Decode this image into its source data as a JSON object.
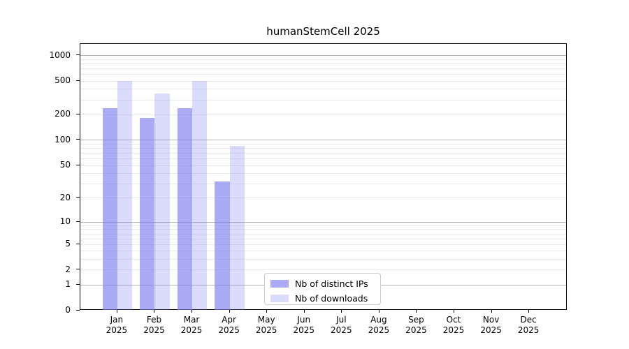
{
  "title": "humanStemCell 2025",
  "chart_data": {
    "type": "bar",
    "title": "humanStemCell 2025",
    "categories": [
      "Jan",
      "Feb",
      "Mar",
      "Apr",
      "May",
      "Jun",
      "Jul",
      "Aug",
      "Sep",
      "Oct",
      "Nov",
      "Dec"
    ],
    "category_year": "2025",
    "series": [
      {
        "name": "Nb of distinct IPs",
        "color": "rgba(124, 124, 240, 0.65)",
        "values": [
          240,
          185,
          240,
          32,
          0,
          0,
          0,
          0,
          0,
          0,
          0,
          0
        ]
      },
      {
        "name": "Nb of downloads",
        "color": "rgba(124, 124, 240, 0.28)",
        "values": [
          500,
          355,
          500,
          85,
          0,
          0,
          0,
          0,
          0,
          0,
          0,
          0
        ]
      }
    ],
    "y_axis": {
      "scale": "log1p",
      "tick_labels": [
        0,
        1,
        2,
        5,
        10,
        20,
        50,
        100,
        200,
        500,
        1000
      ],
      "major_gridline_values": [
        1,
        10,
        100,
        1000
      ],
      "minor_gridline_values": [
        2,
        3,
        4,
        5,
        6,
        7,
        8,
        9,
        20,
        30,
        40,
        50,
        60,
        70,
        80,
        90,
        200,
        300,
        400,
        500,
        600,
        700,
        800,
        900
      ],
      "ylim": [
        0,
        1370
      ]
    },
    "xlabel": "",
    "ylabel": "",
    "grid": "horizontal",
    "legend_position": "lower-center-inside"
  },
  "colors": {
    "bar_distinct_ips": "rgba(124, 124, 240, 0.65)",
    "bar_downloads": "rgba(124, 124, 240, 0.28)",
    "grid_major": "#b3b3b3",
    "grid_minor": "#e9e9e9",
    "spine": "#000000",
    "text": "#000000",
    "background": "#ffffff",
    "legend_border": "#cccccc"
  }
}
